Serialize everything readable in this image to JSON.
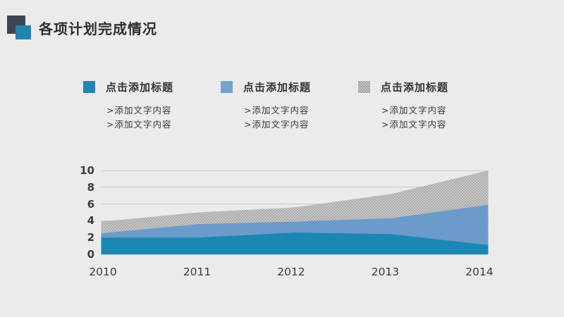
{
  "page": {
    "background": "#ebebeb"
  },
  "header": {
    "title": "各项计划完成情况",
    "accent_dark": "#3e4553",
    "accent_teal": "#1f84ae"
  },
  "legend": {
    "items": [
      {
        "title": "点击添加标题",
        "line1": ">添加文字内容",
        "line2": ">添加文字内容",
        "color": "#2086b2",
        "pattern": false
      },
      {
        "title": "点击添加标题",
        "line1": ">添加文字内容",
        "line2": ">添加文字内容",
        "color": "#74a3cf",
        "pattern": false
      },
      {
        "title": "点击添加标题",
        "line1": ">添加文字内容",
        "line2": ">添加文字内容",
        "color": "#b0b0b0",
        "pattern": true
      }
    ]
  },
  "chart_data": {
    "type": "area",
    "stacked": true,
    "title": "",
    "xlabel": "",
    "ylabel": "",
    "categories": [
      "2010",
      "2011",
      "2012",
      "2013",
      "2014"
    ],
    "series": [
      {
        "name": "点击添加标题",
        "color": "#1b87b3",
        "pattern": false,
        "values": [
          2.0,
          2.0,
          2.6,
          2.4,
          1.1
        ]
      },
      {
        "name": "点击添加标题",
        "color": "#6b9bcb",
        "pattern": false,
        "values": [
          0.5,
          1.6,
          1.3,
          1.9,
          4.8
        ]
      },
      {
        "name": "点击添加标题",
        "color": "#b3b3b3",
        "pattern": true,
        "values": [
          1.4,
          1.4,
          1.7,
          2.9,
          4.1
        ]
      }
    ],
    "stacked_totals": [
      3.9,
      5.0,
      5.6,
      7.2,
      10.0
    ],
    "ylim": [
      0,
      10
    ],
    "ytick_step": 2,
    "yticks": [
      "0",
      "2",
      "4",
      "6",
      "8",
      "10"
    ],
    "grid": true,
    "grid_color": "#c9c9c9",
    "legend_position": "top"
  }
}
